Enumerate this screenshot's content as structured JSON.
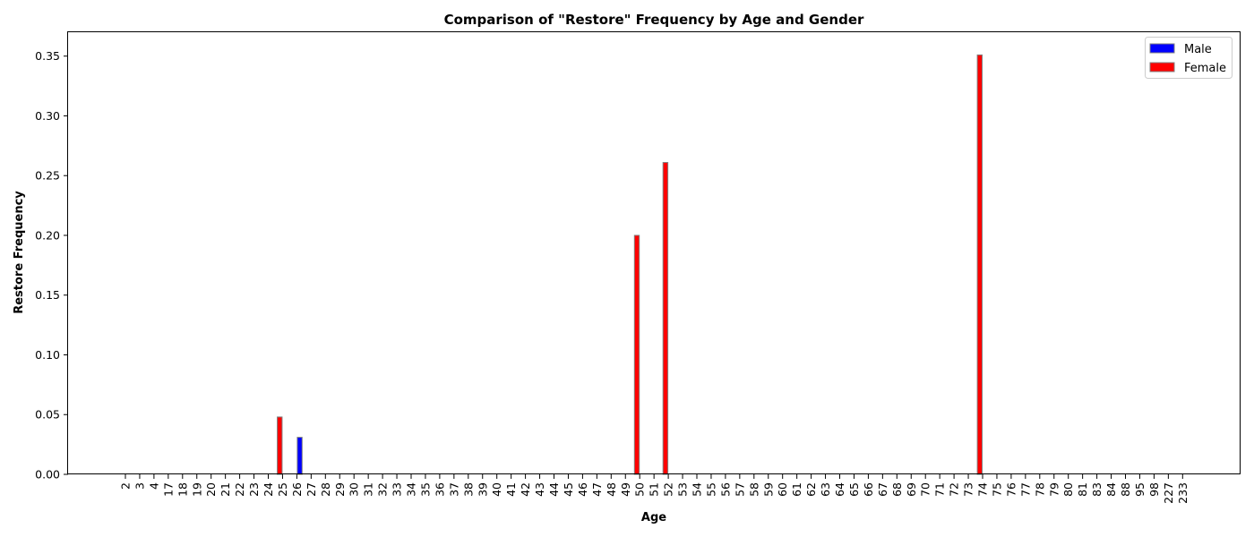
{
  "chart_data": {
    "type": "bar",
    "title": "Comparison of \"Restore\" Frequency by Age and Gender",
    "xlabel": "Age",
    "ylabel": "Restore Frequency",
    "ylim": [
      0,
      0.37
    ],
    "yticks": [
      "0.00",
      "0.05",
      "0.10",
      "0.15",
      "0.20",
      "0.25",
      "0.30",
      "0.35"
    ],
    "categories": [
      "2",
      "3",
      "4",
      "17",
      "18",
      "19",
      "20",
      "21",
      "22",
      "23",
      "24",
      "25",
      "26",
      "27",
      "28",
      "29",
      "30",
      "31",
      "32",
      "33",
      "34",
      "35",
      "36",
      "37",
      "38",
      "39",
      "40",
      "41",
      "42",
      "43",
      "44",
      "45",
      "46",
      "47",
      "48",
      "49",
      "50",
      "51",
      "52",
      "53",
      "54",
      "55",
      "56",
      "57",
      "58",
      "59",
      "60",
      "61",
      "62",
      "63",
      "64",
      "65",
      "66",
      "67",
      "68",
      "69",
      "70",
      "71",
      "72",
      "73",
      "74",
      "75",
      "76",
      "77",
      "78",
      "79",
      "80",
      "81",
      "83",
      "84",
      "88",
      "95",
      "98",
      "227",
      "233"
    ],
    "series": [
      {
        "name": "Male",
        "color": "#0000ff",
        "values": [
          0,
          0,
          0,
          0,
          0,
          0,
          0,
          0,
          0,
          0,
          0,
          0,
          0.031,
          0,
          0,
          0,
          0,
          0,
          0,
          0,
          0,
          0,
          0,
          0,
          0,
          0,
          0,
          0,
          0,
          0,
          0,
          0,
          0,
          0,
          0,
          0,
          0,
          0,
          0,
          0,
          0,
          0,
          0,
          0,
          0,
          0,
          0,
          0,
          0,
          0,
          0,
          0,
          0,
          0,
          0,
          0,
          0,
          0,
          0,
          0,
          0,
          0,
          0,
          0,
          0,
          0,
          0,
          0,
          0,
          0,
          0,
          0,
          0,
          0,
          0
        ]
      },
      {
        "name": "Female",
        "color": "#ff0000",
        "values": [
          0,
          0,
          0,
          0,
          0,
          0,
          0,
          0,
          0,
          0,
          0,
          0.048,
          0,
          0,
          0,
          0,
          0,
          0,
          0,
          0,
          0,
          0,
          0,
          0,
          0,
          0,
          0,
          0,
          0,
          0,
          0,
          0,
          0,
          0,
          0,
          0,
          0.2,
          0,
          0.261,
          0,
          0,
          0,
          0,
          0,
          0,
          0,
          0,
          0,
          0,
          0,
          0,
          0,
          0,
          0,
          0,
          0,
          0,
          0,
          0,
          0,
          0.351,
          0,
          0,
          0,
          0,
          0,
          0,
          0,
          0,
          0,
          0,
          0,
          0,
          0,
          0
        ]
      }
    ],
    "legend_position": "top-right",
    "grid": false,
    "bar_edge_color": "#808080"
  }
}
